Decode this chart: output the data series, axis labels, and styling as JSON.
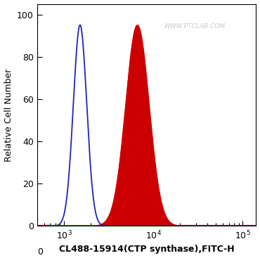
{
  "xlabel": "CL488-15914(CTP synthase),FITC-H",
  "ylabel": "Relative Cell Number",
  "watermark": "WWW.PTCLAB.COM",
  "ylim": [
    0,
    105
  ],
  "yticks": [
    0,
    20,
    40,
    60,
    80,
    100
  ],
  "blue_peak_log": 3.18,
  "blue_sigma": 0.075,
  "blue_height": 95,
  "red_peak_log": 3.82,
  "red_sigma": 0.13,
  "red_height": 95,
  "blue_color": "#2222BB",
  "red_color": "#CC0000",
  "bg_color": "#FFFFFF",
  "baseline_value": 0.2,
  "xlim_log_min": 2.7,
  "xlim_log_max": 5.15
}
